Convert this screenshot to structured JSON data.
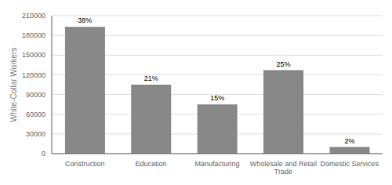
{
  "chart_data": {
    "type": "bar",
    "categories": [
      "Construction",
      "Education",
      "Manufacturing",
      "Wholesale and Retail\nTrade",
      "Domestic Services"
    ],
    "values": [
      193000,
      105000,
      75000,
      127000,
      10000
    ],
    "percentages": [
      "38%",
      "21%",
      "15%",
      "25%",
      "2%"
    ],
    "color": "#888888",
    "ylabel": "White-Collar Workers",
    "ylim": [
      0,
      210000
    ],
    "yticks": [
      0,
      30000,
      60000,
      90000,
      120000,
      150000,
      180000,
      210000
    ],
    "grid": true
  }
}
